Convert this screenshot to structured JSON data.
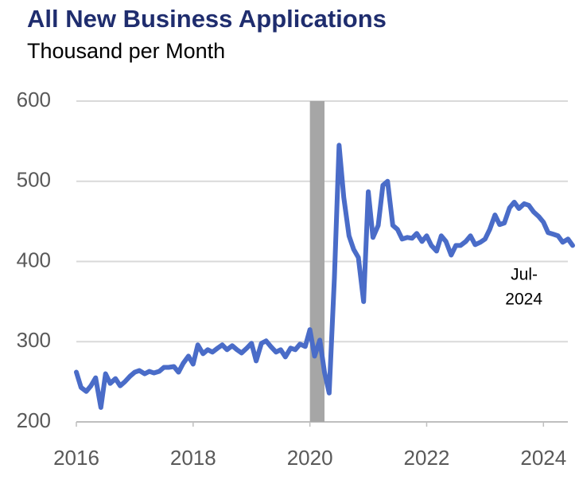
{
  "chart_data": {
    "type": "line",
    "title": "All New Business Applications",
    "subtitle": "Thousand per Month",
    "annotation": [
      "Jul-",
      "2024"
    ],
    "x": [
      2016.0,
      2016.08,
      2016.17,
      2016.25,
      2016.33,
      2016.42,
      2016.5,
      2016.58,
      2016.67,
      2016.75,
      2016.83,
      2016.92,
      2017.0,
      2017.08,
      2017.17,
      2017.25,
      2017.33,
      2017.42,
      2017.5,
      2017.58,
      2017.67,
      2017.75,
      2017.83,
      2017.92,
      2018.0,
      2018.08,
      2018.17,
      2018.25,
      2018.33,
      2018.42,
      2018.5,
      2018.58,
      2018.67,
      2018.75,
      2018.83,
      2018.92,
      2019.0,
      2019.08,
      2019.17,
      2019.25,
      2019.33,
      2019.42,
      2019.5,
      2019.58,
      2019.67,
      2019.75,
      2019.83,
      2019.92,
      2020.0,
      2020.08,
      2020.17,
      2020.25,
      2020.33,
      2020.42,
      2020.5,
      2020.58,
      2020.67,
      2020.75,
      2020.83,
      2020.92,
      2021.0,
      2021.08,
      2021.17,
      2021.25,
      2021.33,
      2021.42,
      2021.5,
      2021.58,
      2021.67,
      2021.75,
      2021.83,
      2021.92,
      2022.0,
      2022.08,
      2022.17,
      2022.25,
      2022.33,
      2022.42,
      2022.5,
      2022.58,
      2022.67,
      2022.75,
      2022.83,
      2022.92,
      2023.0,
      2023.08,
      2023.17,
      2023.25,
      2023.33,
      2023.42,
      2023.5,
      2023.58,
      2023.67,
      2023.75,
      2023.83,
      2023.92,
      2024.0,
      2024.08,
      2024.17,
      2024.25,
      2024.33,
      2024.42,
      2024.5
    ],
    "series": [
      {
        "color": "#4a6cc8",
        "values": [
          262,
          243,
          238,
          245,
          255,
          218,
          260,
          248,
          254,
          245,
          250,
          257,
          262,
          264,
          260,
          263,
          261,
          263,
          268,
          268,
          269,
          262,
          273,
          282,
          272,
          296,
          285,
          290,
          287,
          292,
          296,
          290,
          295,
          290,
          286,
          292,
          298,
          276,
          298,
          301,
          294,
          287,
          290,
          281,
          292,
          290,
          297,
          294,
          315,
          282,
          302,
          262,
          236,
          380,
          545,
          480,
          432,
          415,
          405,
          350,
          487,
          430,
          445,
          495,
          500,
          445,
          440,
          428,
          430,
          429,
          435,
          425,
          432,
          420,
          413,
          432,
          425,
          408,
          420,
          420,
          425,
          432,
          421,
          424,
          428,
          440,
          458,
          446,
          448,
          467,
          474,
          466,
          472,
          470,
          462,
          456,
          449,
          436,
          434,
          432,
          424,
          428,
          420
        ]
      }
    ],
    "recession": [
      2020.0,
      2020.25
    ],
    "recession_color": "#a6a6a6",
    "xlim": [
      2016,
      2024.5
    ],
    "xticks": [
      2016,
      2018,
      2020,
      2022,
      2024
    ],
    "ylim": [
      200,
      600
    ],
    "yticks": [
      200,
      300,
      400,
      500,
      600
    ],
    "grid": true
  }
}
